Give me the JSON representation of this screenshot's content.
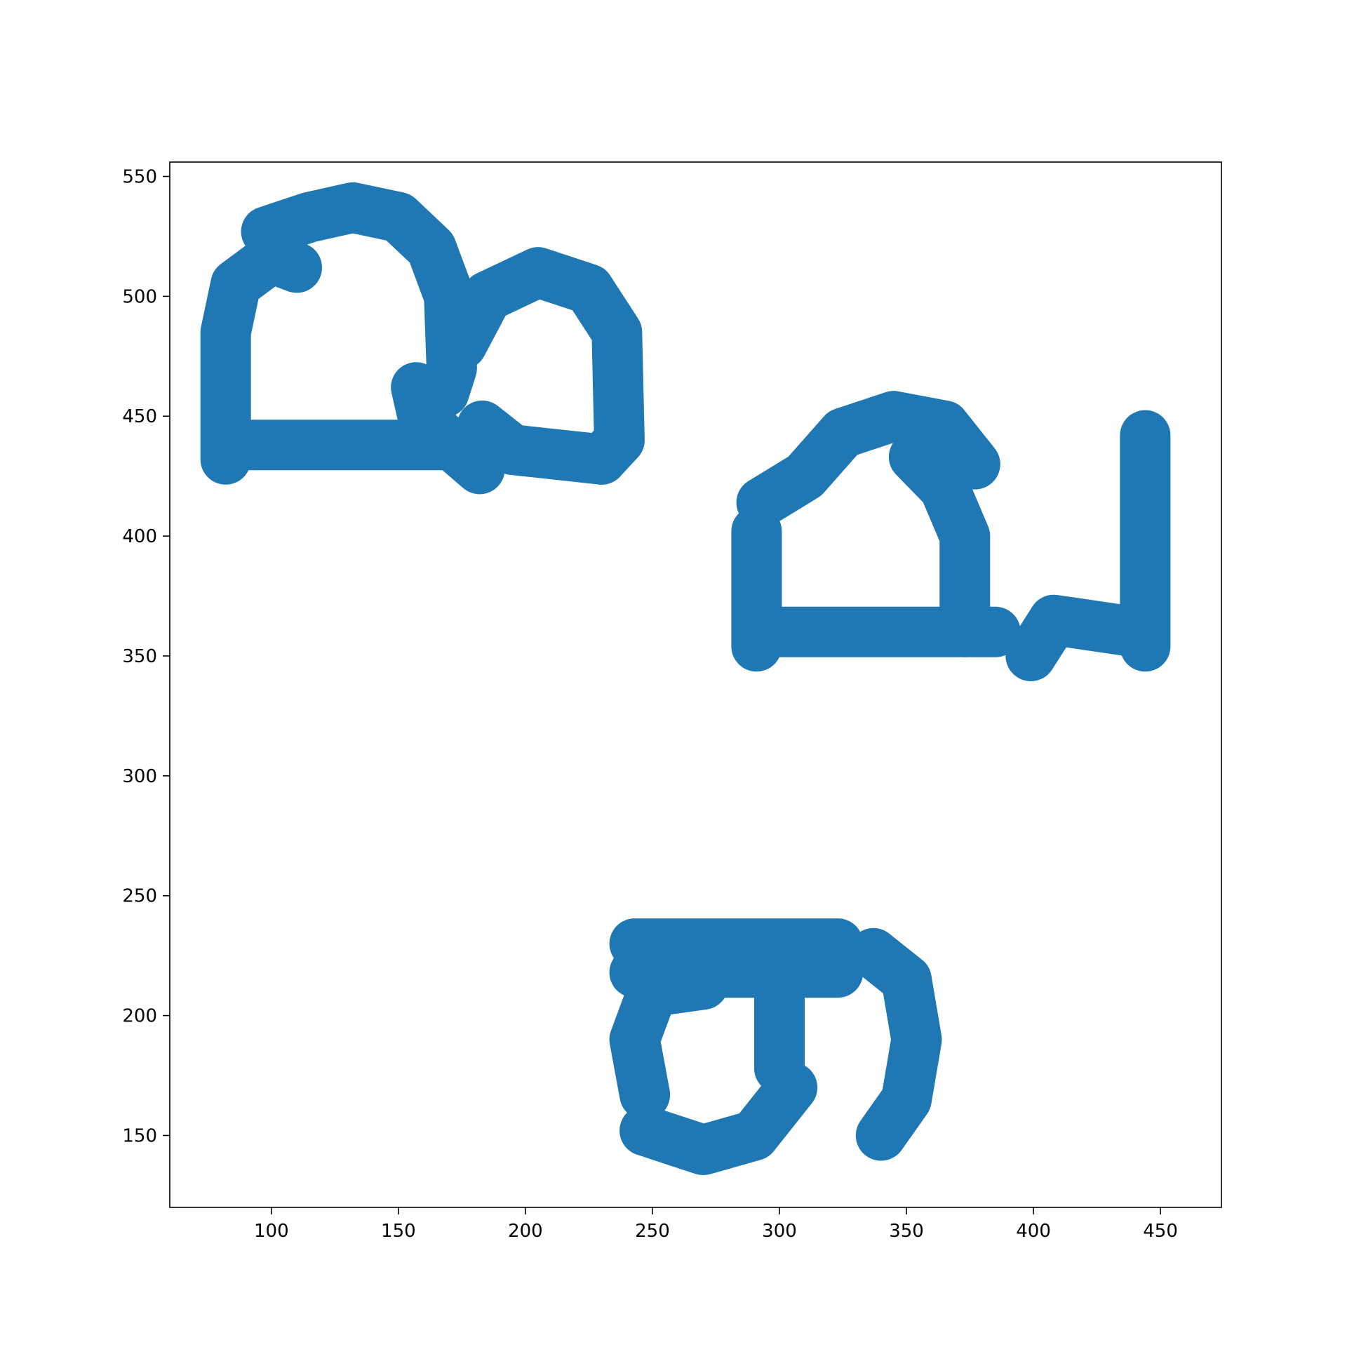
{
  "chart_data": {
    "type": "scatter",
    "title": "",
    "xlabel": "",
    "ylabel": "",
    "xlim": [
      60,
      474
    ],
    "ylim": [
      120,
      556
    ],
    "xticks": [
      100,
      150,
      200,
      250,
      300,
      350,
      400,
      450
    ],
    "yticks": [
      150,
      200,
      250,
      300,
      350,
      400,
      450,
      500,
      550
    ],
    "grid": false,
    "legend": "none",
    "marker_color": "#1f77b4",
    "series": [
      {
        "points_description": "dense scatter of points forming thick strokes",
        "strokes": [
          {
            "kind": "polyline",
            "points": [
              [
                82,
                432
              ],
              [
                82,
                485
              ],
              [
                86,
                505
              ],
              [
                100,
                516
              ],
              [
                110,
                512
              ]
            ]
          },
          {
            "kind": "polyline",
            "points": [
              [
                86,
                438
              ],
              [
                180,
                438
              ]
            ]
          },
          {
            "kind": "polyline",
            "points": [
              [
                98,
                527
              ],
              [
                115,
                533
              ],
              [
                132,
                537
              ],
              [
                150,
                533
              ],
              [
                163,
                520
              ],
              [
                170,
                500
              ],
              [
                171,
                470
              ],
              [
                168,
                460
              ]
            ]
          },
          {
            "kind": "polyline",
            "points": [
              [
                157,
                462
              ],
              [
                160,
                448
              ],
              [
                182,
                428
              ]
            ]
          },
          {
            "kind": "polyline",
            "points": [
              [
                175,
                480
              ],
              [
                185,
                500
              ],
              [
                205,
                510
              ],
              [
                225,
                503
              ],
              [
                236,
                485
              ],
              [
                237,
                440
              ],
              [
                230,
                432
              ]
            ]
          },
          {
            "kind": "polyline",
            "points": [
              [
                183,
                446
              ],
              [
                195,
                436
              ],
              [
                230,
                432
              ]
            ]
          },
          {
            "kind": "polyline",
            "points": [
              [
                291,
                354
              ],
              [
                291,
                402
              ]
            ]
          },
          {
            "kind": "polyline",
            "points": [
              [
                295,
                360
              ],
              [
                385,
                360
              ]
            ]
          },
          {
            "kind": "polyline",
            "points": [
              [
                293,
                414
              ],
              [
                310,
                425
              ],
              [
                325,
                443
              ],
              [
                345,
                450
              ],
              [
                365,
                446
              ],
              [
                377,
                430
              ]
            ]
          },
          {
            "kind": "polyline",
            "points": [
              [
                353,
                433
              ],
              [
                365,
                420
              ],
              [
                373,
                400
              ],
              [
                373,
                360
              ]
            ]
          },
          {
            "kind": "polyline",
            "points": [
              [
                399,
                350
              ],
              [
                408,
                365
              ],
              [
                440,
                360
              ]
            ]
          },
          {
            "kind": "polyline",
            "points": [
              [
                444,
                442
              ],
              [
                444,
                354
              ]
            ]
          },
          {
            "kind": "polyline",
            "points": [
              [
                243,
                230
              ],
              [
                323,
                230
              ],
              [
                323,
                218
              ],
              [
                243,
                218
              ]
            ]
          },
          {
            "kind": "polyline",
            "points": [
              [
                300,
                210
              ],
              [
                300,
                178
              ]
            ]
          },
          {
            "kind": "polyline",
            "points": [
              [
                247,
                167
              ],
              [
                243,
                190
              ],
              [
                250,
                210
              ],
              [
                270,
                213
              ]
            ]
          },
          {
            "kind": "polyline",
            "points": [
              [
                247,
                152
              ],
              [
                270,
                144
              ],
              [
                290,
                150
              ],
              [
                305,
                170
              ]
            ]
          },
          {
            "kind": "polyline",
            "points": [
              [
                337,
                226
              ],
              [
                350,
                215
              ],
              [
                354,
                190
              ],
              [
                350,
                165
              ],
              [
                340,
                150
              ]
            ]
          }
        ]
      }
    ]
  }
}
